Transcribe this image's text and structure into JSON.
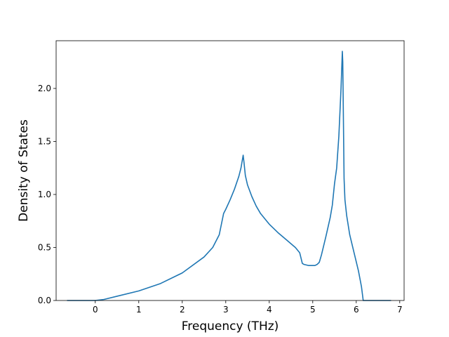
{
  "chart_data": {
    "type": "line",
    "title": "",
    "xlabel": "Frequency (THz)",
    "ylabel": "Density of States",
    "xlim": [
      -0.9,
      7.1
    ],
    "ylim": [
      0.0,
      2.45
    ],
    "xticks": [
      0,
      1,
      2,
      3,
      4,
      5,
      6,
      7
    ],
    "xtick_labels": [
      "0",
      "1",
      "2",
      "3",
      "4",
      "5",
      "6",
      "7"
    ],
    "yticks": [
      0.0,
      0.5,
      1.0,
      1.5,
      2.0
    ],
    "ytick_labels": [
      "0.0",
      "0.5",
      "1.0",
      "1.5",
      "2.0"
    ],
    "grid": false,
    "legend": "none",
    "series": [
      {
        "color": "#1f77b4",
        "x": [
          -0.65,
          -0.3,
          0.0,
          0.2,
          0.5,
          1.0,
          1.5,
          2.0,
          2.5,
          2.7,
          2.85,
          2.9,
          2.95,
          3.0,
          3.1,
          3.2,
          3.3,
          3.35,
          3.4,
          3.42,
          3.45,
          3.5,
          3.6,
          3.7,
          3.8,
          4.0,
          4.2,
          4.4,
          4.6,
          4.7,
          4.73,
          4.76,
          4.8,
          4.9,
          5.0,
          5.05,
          5.1,
          5.15,
          5.2,
          5.3,
          5.4,
          5.45,
          5.5,
          5.55,
          5.6,
          5.65,
          5.68,
          5.69,
          5.72,
          5.74,
          5.78,
          5.85,
          5.95,
          6.05,
          6.12,
          6.16,
          6.3,
          6.8
        ],
        "y": [
          0.0,
          0.0,
          0.0,
          0.01,
          0.04,
          0.09,
          0.16,
          0.26,
          0.41,
          0.5,
          0.62,
          0.72,
          0.82,
          0.86,
          0.95,
          1.05,
          1.17,
          1.25,
          1.37,
          1.3,
          1.18,
          1.09,
          0.98,
          0.89,
          0.82,
          0.72,
          0.64,
          0.57,
          0.5,
          0.45,
          0.4,
          0.35,
          0.34,
          0.33,
          0.33,
          0.33,
          0.34,
          0.36,
          0.43,
          0.6,
          0.78,
          0.9,
          1.1,
          1.25,
          1.55,
          2.0,
          2.35,
          2.25,
          1.15,
          0.95,
          0.8,
          0.62,
          0.45,
          0.28,
          0.13,
          0.0,
          0.0,
          0.0
        ]
      }
    ]
  }
}
